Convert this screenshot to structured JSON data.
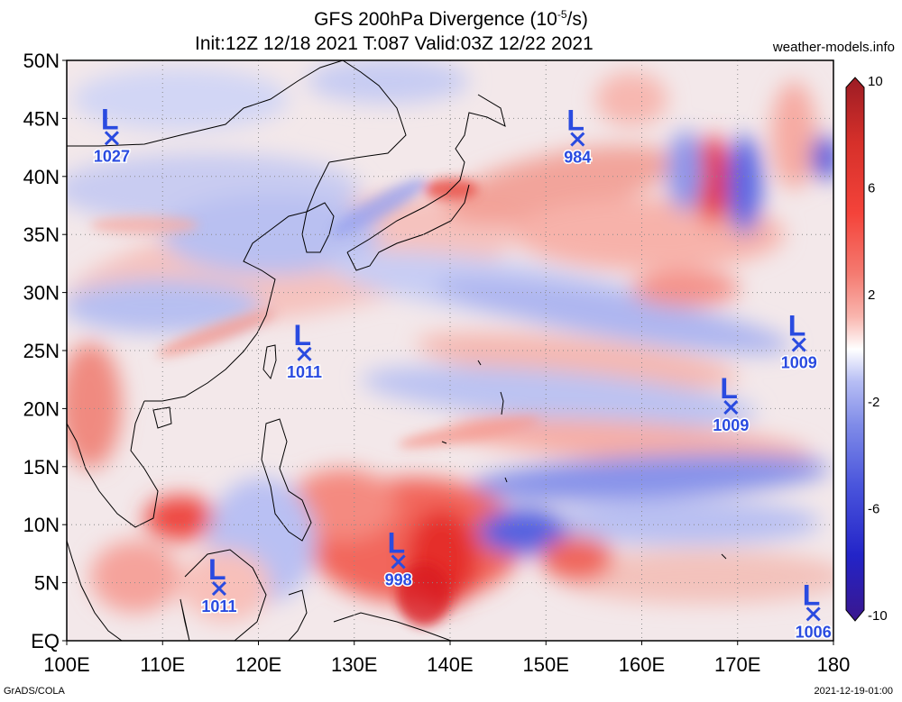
{
  "header": {
    "title_line1_pre": "GFS 200hPa Divergence (10",
    "title_line1_exp": "-5",
    "title_line1_post": "/s)",
    "title_line2": "Init:12Z 12/18 2021 T:087 Valid:03Z 12/22 2021",
    "site": "weather-models.info"
  },
  "footer": {
    "credit": "GrADS/COLA",
    "timestamp": "2021-12-19-01:00"
  },
  "axes": {
    "lat_labels": [
      "50N",
      "45N",
      "40N",
      "35N",
      "30N",
      "25N",
      "20N",
      "15N",
      "10N",
      "5N",
      "EQ"
    ],
    "lon_labels": [
      "100E",
      "110E",
      "120E",
      "130E",
      "140E",
      "150E",
      "160E",
      "170E",
      "180"
    ]
  },
  "colorbar": {
    "tick_labels": [
      "10",
      "6",
      "2",
      "-2",
      "-6",
      "-10"
    ],
    "colors_top_to_bottom": [
      "#b2182b",
      "#d6302a",
      "#f4433a",
      "#f47a70",
      "#f9b5ae",
      "#fbe1dd",
      "#ffffff",
      "#dfe2fb",
      "#b6bdf4",
      "#7f8be8",
      "#4a55dc",
      "#2324c8",
      "#3a168d"
    ]
  },
  "lows": [
    {
      "value": "1027",
      "lon": 104.7,
      "lat": 43.3
    },
    {
      "value": "984",
      "lon": 153.3,
      "lat": 43.2
    },
    {
      "value": "1011",
      "lon": 124.8,
      "lat": 24.7
    },
    {
      "value": "1009",
      "lon": 176.4,
      "lat": 25.5
    },
    {
      "value": "1009",
      "lon": 169.3,
      "lat": 20.1
    },
    {
      "value": "998",
      "lon": 134.6,
      "lat": 6.8
    },
    {
      "value": "1011",
      "lon": 115.9,
      "lat": 4.5
    },
    {
      "value": "1006",
      "lon": 177.9,
      "lat": 2.3
    }
  ]
}
